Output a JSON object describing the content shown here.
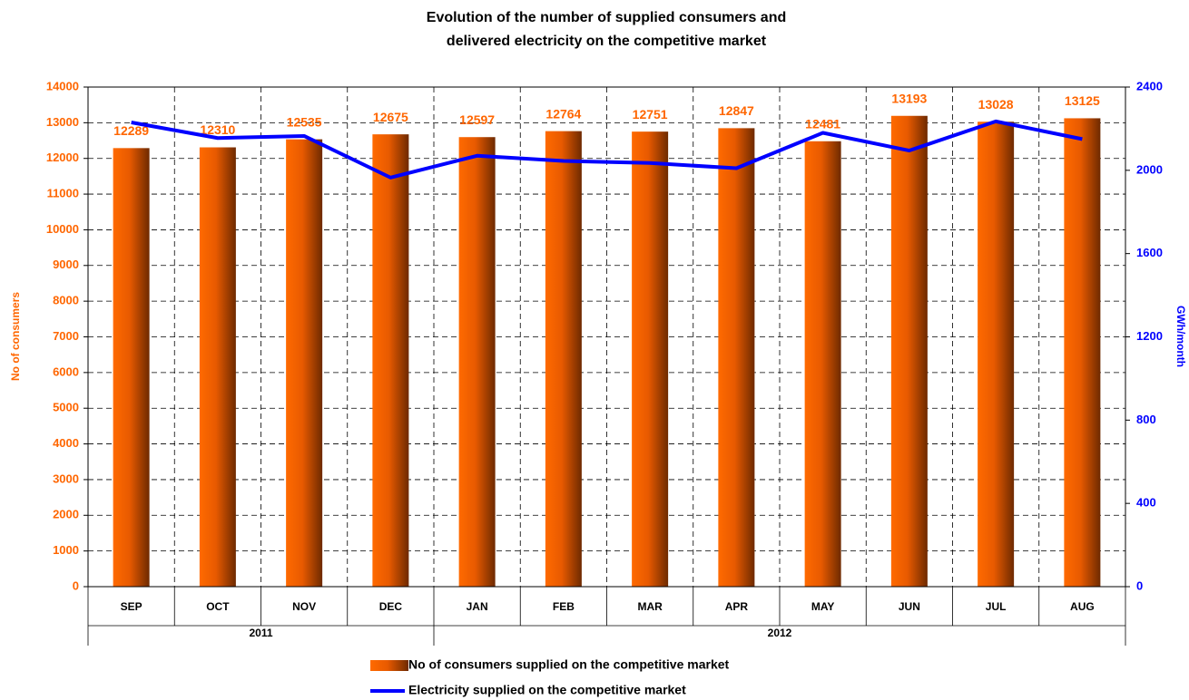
{
  "chart_data": {
    "type": "bar",
    "title": "Evolution of the number of supplied consumers and",
    "subtitle": "delivered electricity  on the competitive market",
    "categories": [
      "SEP",
      "OCT",
      "NOV",
      "DEC",
      "JAN",
      "FEB",
      "MAR",
      "APR",
      "MAY",
      "JUN",
      "JUL",
      "AUG"
    ],
    "groups": [
      {
        "label": "2011",
        "span": 4
      },
      {
        "label": "2012",
        "span": 8
      }
    ],
    "series": [
      {
        "name": "No of  consumers supplied on the competitive market",
        "type": "bar",
        "color": "#ff6600",
        "axis": "y",
        "values": [
          12289,
          12310,
          12535,
          12675,
          12597,
          12764,
          12751,
          12847,
          12481,
          13193,
          13028,
          13125
        ]
      },
      {
        "name": "Electricity supplied on the competitive market",
        "type": "line",
        "color": "#0000ff",
        "axis": "y2",
        "values": [
          2230,
          2155,
          2165,
          1965,
          2070,
          2045,
          2035,
          2010,
          2180,
          2095,
          2235,
          2150
        ]
      }
    ],
    "ylabel": "No of consumers",
    "y2label": "GWh/month",
    "ylim": [
      0,
      14000
    ],
    "yticks": [
      0,
      1000,
      2000,
      3000,
      4000,
      5000,
      6000,
      7000,
      8000,
      9000,
      10000,
      11000,
      12000,
      13000,
      14000
    ],
    "y2lim": [
      0,
      2400
    ],
    "y2ticks": [
      0,
      400,
      800,
      1200,
      1600,
      2000,
      2400
    ],
    "grid": true,
    "legend": "bottom"
  }
}
